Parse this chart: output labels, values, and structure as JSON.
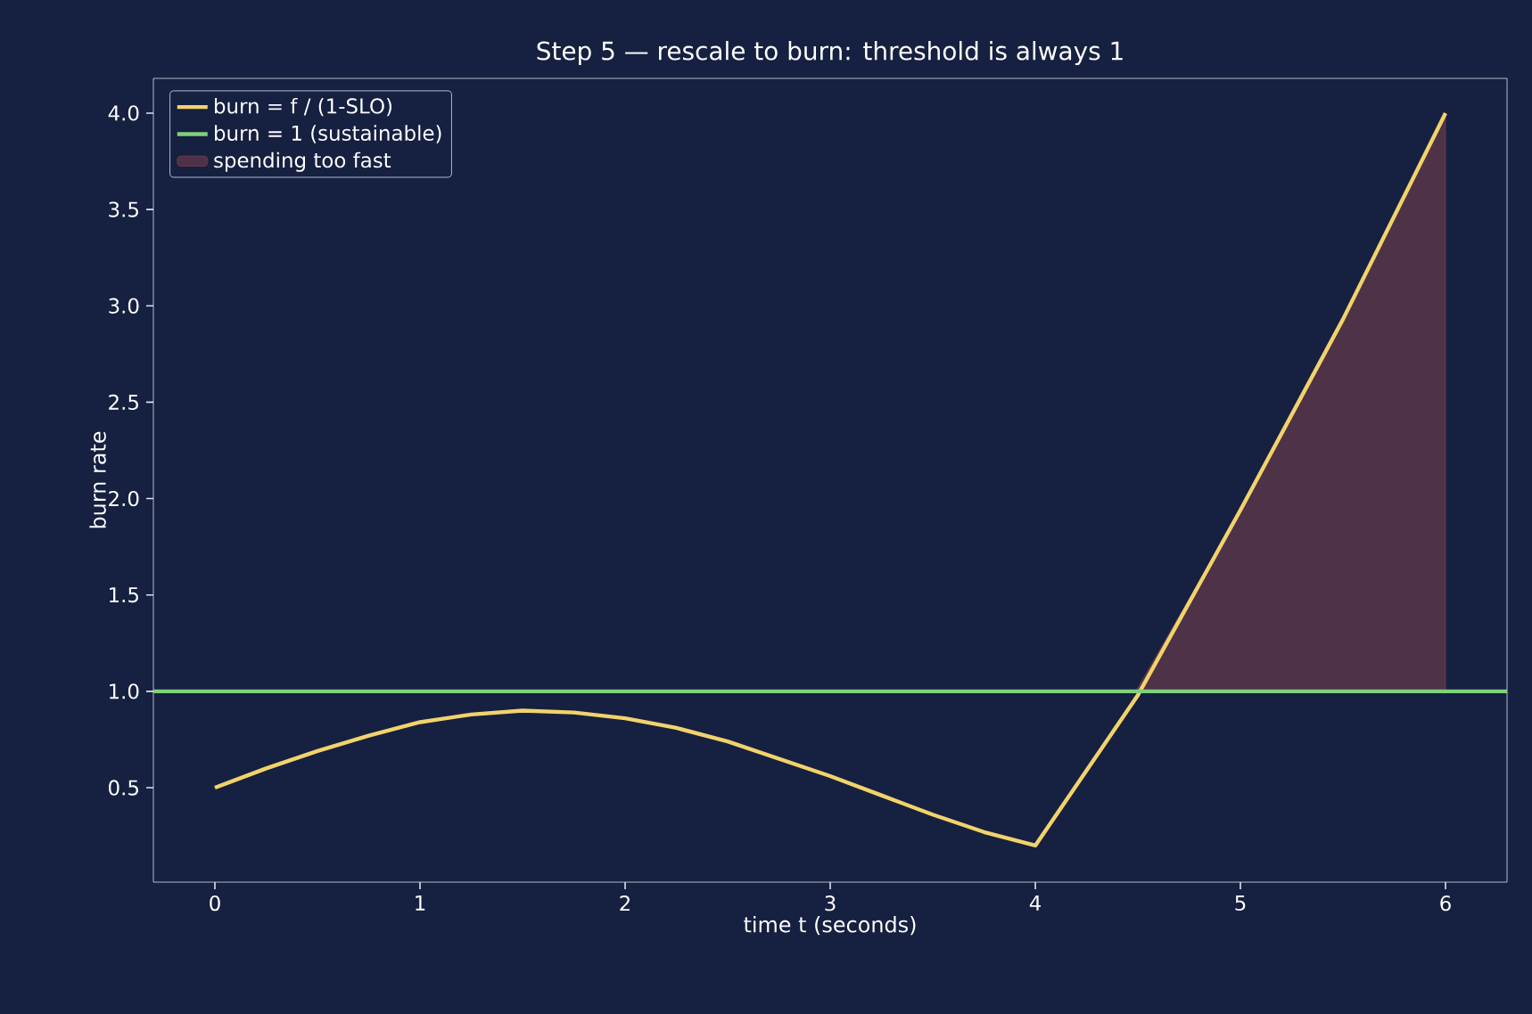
{
  "chart_data": {
    "type": "line",
    "title": "Step 5 — rescale to burn: threshold is always 1",
    "xlabel": "time t (seconds)",
    "ylabel": "burn rate",
    "series": [
      {
        "name": "burn = f / (1-SLO)",
        "color": "#f2d36b",
        "x": [
          0,
          0.25,
          0.5,
          0.75,
          1,
          1.25,
          1.5,
          1.75,
          2,
          2.25,
          2.5,
          2.75,
          3,
          3.25,
          3.5,
          3.75,
          4,
          4.5,
          5,
          5.5,
          6
        ],
        "values": [
          0.5,
          0.6,
          0.69,
          0.77,
          0.84,
          0.88,
          0.9,
          0.89,
          0.86,
          0.81,
          0.74,
          0.65,
          0.56,
          0.46,
          0.36,
          0.27,
          0.2,
          0.98,
          1.94,
          2.93,
          4.0
        ]
      },
      {
        "name": "spending too fast",
        "type": "area",
        "color": "#4e3248",
        "x": [
          4.49,
          5,
          5.5,
          6
        ],
        "values": [
          1,
          1.94,
          2.93,
          4.0
        ]
      }
    ],
    "ref_lines": [
      {
        "axis": "y",
        "value": 1,
        "label": "burn = 1 (sustainable)",
        "color": "#7fd17a"
      }
    ],
    "xlim": [
      -0.3,
      6.3
    ],
    "ylim": [
      0.01,
      4.18
    ],
    "xticks": [
      0,
      1,
      2,
      3,
      4,
      5,
      6
    ],
    "yticks": [
      0.5,
      {
        "value": 1,
        "label": "1.0"
      },
      1.5,
      {
        "value": 2,
        "label": "2.0"
      },
      2.5,
      {
        "value": 3,
        "label": "3.0"
      },
      3.5,
      {
        "value": 4,
        "label": "4.0"
      }
    ],
    "legend": "top left",
    "grid": false,
    "line_style": "solid",
    "marker": "none"
  }
}
